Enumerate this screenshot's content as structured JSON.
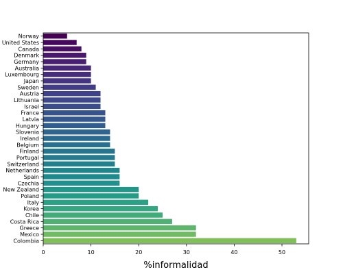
{
  "chart_data": {
    "type": "bar",
    "orientation": "horizontal",
    "title": "",
    "xlabel": "%informalidad",
    "ylabel": "",
    "xlim": [
      0,
      55.6
    ],
    "xticks": [
      0,
      10,
      20,
      30,
      40,
      50
    ],
    "grid": false,
    "legend": "none",
    "colormap": "viridis",
    "categories": [
      "Norway",
      "United States",
      "Canada",
      "Denmark",
      "Germany",
      "Australia",
      "Luxembourg",
      "Japan",
      "Sweden",
      "Austria",
      "Lithuania",
      "Israel",
      "France",
      "Latvia",
      "Hungary",
      "Slovenia",
      "Ireland",
      "Belgium",
      "Finland",
      "Portugal",
      "Switzerland",
      "Netherlands",
      "Spain",
      "Czechia",
      "New Zealand",
      "Poland",
      "Italy",
      "Korea",
      "Chile",
      "Costa Rica",
      "Greece",
      "Mexico",
      "Colombia"
    ],
    "values": [
      5,
      7,
      8,
      9,
      9,
      10,
      10,
      10,
      11,
      12,
      12,
      12,
      13,
      13,
      13,
      14,
      14,
      14,
      15,
      15,
      15,
      16,
      16,
      16,
      20,
      20,
      22,
      24,
      25,
      27,
      32,
      32,
      53
    ],
    "colors": [
      "#440154",
      "#46085c",
      "#471063",
      "#48186a",
      "#482071",
      "#472777",
      "#462e7c",
      "#443482",
      "#423b86",
      "#3f418a",
      "#3c478c",
      "#3a4d8d",
      "#37538e",
      "#34588e",
      "#315e8e",
      "#2e648e",
      "#2c698e",
      "#296f8e",
      "#27748e",
      "#257a8e",
      "#227f8e",
      "#20858d",
      "#1f8a8c",
      "#1f908b",
      "#21968a",
      "#249b87",
      "#2aa184",
      "#34a680",
      "#41ac7a",
      "#4fb174",
      "#5eb66c",
      "#6ebb63",
      "#80bf59"
    ]
  }
}
